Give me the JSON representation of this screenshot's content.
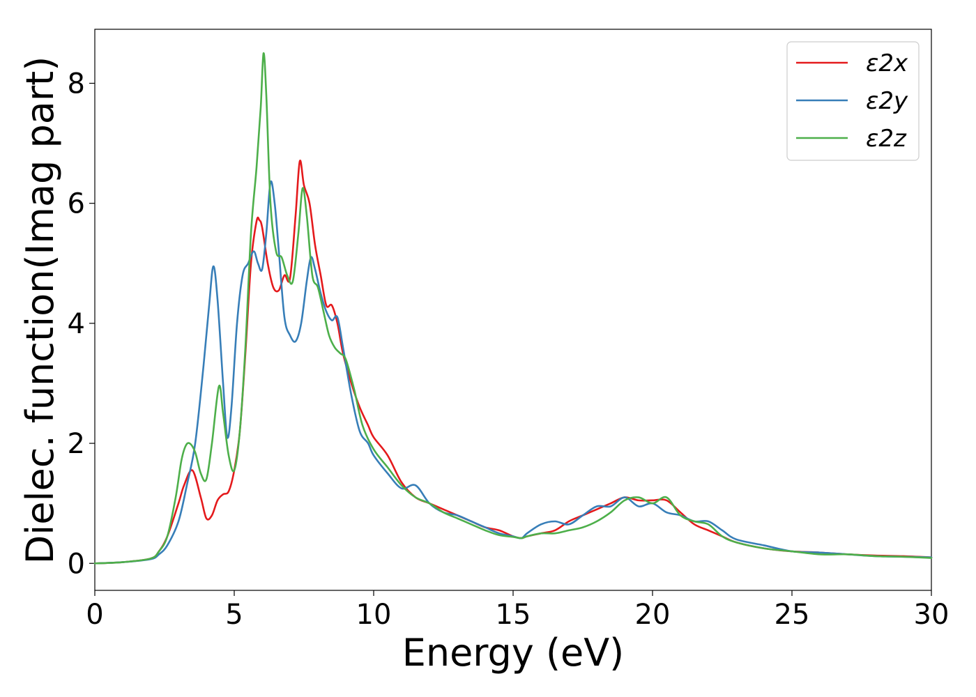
{
  "chart_data": {
    "type": "line",
    "title": "",
    "xlabel": "Energy (eV)",
    "ylabel": "Dielec. function(Imag part)",
    "xlim": [
      0,
      30
    ],
    "ylim": [
      -0.45,
      8.9
    ],
    "xticks": [
      0,
      5,
      10,
      15,
      20,
      25,
      30
    ],
    "yticks": [
      0,
      2,
      4,
      6,
      8
    ],
    "grid": false,
    "legend_position": "top-right",
    "series": [
      {
        "name": "ε2x",
        "color": "#e41a1c",
        "x": [
          0,
          1,
          2,
          2.3,
          2.6,
          3.0,
          3.2,
          3.5,
          3.8,
          4.0,
          4.2,
          4.4,
          4.6,
          4.8,
          5.0,
          5.2,
          5.4,
          5.6,
          5.8,
          5.9,
          6.0,
          6.2,
          6.4,
          6.6,
          6.8,
          7.0,
          7.2,
          7.35,
          7.5,
          7.7,
          7.9,
          8.1,
          8.3,
          8.5,
          8.7,
          8.9,
          9.2,
          9.5,
          9.8,
          10.0,
          10.5,
          11.0,
          11.5,
          12.0,
          12.5,
          13.0,
          13.5,
          14.0,
          14.5,
          15.0,
          15.3,
          15.5,
          16.0,
          16.5,
          17.0,
          17.5,
          18.0,
          18.5,
          19.0,
          19.5,
          20.0,
          20.5,
          21.0,
          21.5,
          22.0,
          22.5,
          23.0,
          24.0,
          25.0,
          26.0,
          27.0,
          28.0,
          29.0,
          30.0
        ],
        "y": [
          0,
          0.02,
          0.08,
          0.2,
          0.45,
          1.0,
          1.3,
          1.55,
          1.1,
          0.75,
          0.8,
          1.05,
          1.15,
          1.2,
          1.55,
          2.2,
          3.5,
          5.0,
          5.7,
          5.72,
          5.6,
          5.0,
          4.6,
          4.55,
          4.8,
          4.75,
          5.8,
          6.7,
          6.3,
          6.0,
          5.3,
          4.8,
          4.3,
          4.3,
          4.0,
          3.5,
          3.0,
          2.6,
          2.3,
          2.1,
          1.8,
          1.35,
          1.1,
          1.0,
          0.9,
          0.8,
          0.7,
          0.6,
          0.55,
          0.45,
          0.42,
          0.45,
          0.5,
          0.55,
          0.7,
          0.8,
          0.9,
          1.0,
          1.1,
          1.05,
          1.05,
          1.05,
          0.85,
          0.65,
          0.55,
          0.45,
          0.35,
          0.25,
          0.2,
          0.18,
          0.15,
          0.13,
          0.12,
          0.1
        ]
      },
      {
        "name": "ε2y",
        "color": "#377eb8",
        "x": [
          0,
          1,
          2,
          2.3,
          2.6,
          3.0,
          3.3,
          3.6,
          3.9,
          4.1,
          4.25,
          4.4,
          4.6,
          4.75,
          4.9,
          5.1,
          5.3,
          5.5,
          5.7,
          5.85,
          6.0,
          6.15,
          6.3,
          6.45,
          6.6,
          6.8,
          7.0,
          7.2,
          7.4,
          7.6,
          7.75,
          7.9,
          8.1,
          8.3,
          8.5,
          8.7,
          8.9,
          9.2,
          9.5,
          9.8,
          10.0,
          10.5,
          11.0,
          11.5,
          12.0,
          12.5,
          13.0,
          13.5,
          14.0,
          14.5,
          15.0,
          15.3,
          15.5,
          16.0,
          16.5,
          17.0,
          17.5,
          18.0,
          18.5,
          19.0,
          19.5,
          20.0,
          20.5,
          21.0,
          21.5,
          22.0,
          22.5,
          23.0,
          24.0,
          25.0,
          26.0,
          27.0,
          28.0,
          29.0,
          30.0
        ],
        "y": [
          0,
          0.02,
          0.07,
          0.15,
          0.3,
          0.7,
          1.3,
          2.0,
          3.3,
          4.3,
          4.95,
          4.4,
          3.0,
          2.1,
          2.6,
          4.0,
          4.8,
          5.0,
          5.2,
          5.0,
          4.9,
          5.5,
          6.35,
          6.0,
          5.2,
          4.1,
          3.8,
          3.7,
          4.0,
          4.7,
          5.1,
          4.9,
          4.5,
          4.2,
          4.05,
          4.1,
          3.6,
          2.8,
          2.2,
          2.0,
          1.8,
          1.5,
          1.25,
          1.3,
          1.0,
          0.85,
          0.8,
          0.7,
          0.6,
          0.5,
          0.45,
          0.42,
          0.5,
          0.65,
          0.7,
          0.65,
          0.8,
          0.95,
          0.95,
          1.1,
          0.95,
          1.0,
          0.85,
          0.8,
          0.7,
          0.7,
          0.55,
          0.4,
          0.3,
          0.2,
          0.18,
          0.15,
          0.12,
          0.11,
          0.1
        ]
      },
      {
        "name": "ε2z",
        "color": "#4daf4a",
        "x": [
          0,
          1,
          2,
          2.3,
          2.6,
          2.9,
          3.1,
          3.25,
          3.4,
          3.6,
          3.8,
          4.0,
          4.2,
          4.45,
          4.6,
          4.8,
          5.0,
          5.2,
          5.4,
          5.6,
          5.8,
          5.95,
          6.05,
          6.15,
          6.3,
          6.5,
          6.7,
          6.9,
          7.1,
          7.3,
          7.45,
          7.6,
          7.8,
          8.0,
          8.2,
          8.4,
          8.6,
          8.8,
          9.0,
          9.3,
          9.6,
          10.0,
          10.5,
          11.0,
          11.5,
          12.0,
          12.5,
          13.0,
          13.5,
          14.0,
          14.5,
          15.0,
          15.3,
          15.5,
          16.0,
          16.5,
          17.0,
          17.5,
          18.0,
          18.5,
          19.0,
          19.5,
          20.0,
          20.5,
          21.0,
          21.5,
          22.0,
          22.5,
          23.0,
          24.0,
          25.0,
          26.0,
          27.0,
          28.0,
          29.0,
          30.0
        ],
        "y": [
          0,
          0.02,
          0.08,
          0.2,
          0.45,
          1.1,
          1.7,
          1.95,
          2.0,
          1.85,
          1.5,
          1.4,
          2.0,
          2.95,
          2.5,
          1.8,
          1.55,
          2.2,
          3.6,
          5.5,
          6.6,
          7.6,
          8.5,
          7.8,
          6.0,
          5.2,
          5.1,
          4.8,
          4.7,
          5.5,
          6.25,
          5.8,
          4.8,
          4.6,
          4.2,
          3.8,
          3.6,
          3.5,
          3.4,
          2.9,
          2.3,
          1.9,
          1.6,
          1.3,
          1.1,
          1.0,
          0.85,
          0.75,
          0.65,
          0.55,
          0.47,
          0.44,
          0.42,
          0.45,
          0.5,
          0.5,
          0.55,
          0.6,
          0.7,
          0.85,
          1.05,
          1.1,
          1.0,
          1.1,
          0.8,
          0.7,
          0.65,
          0.45,
          0.35,
          0.25,
          0.2,
          0.15,
          0.15,
          0.12,
          0.11,
          0.09
        ]
      }
    ]
  }
}
